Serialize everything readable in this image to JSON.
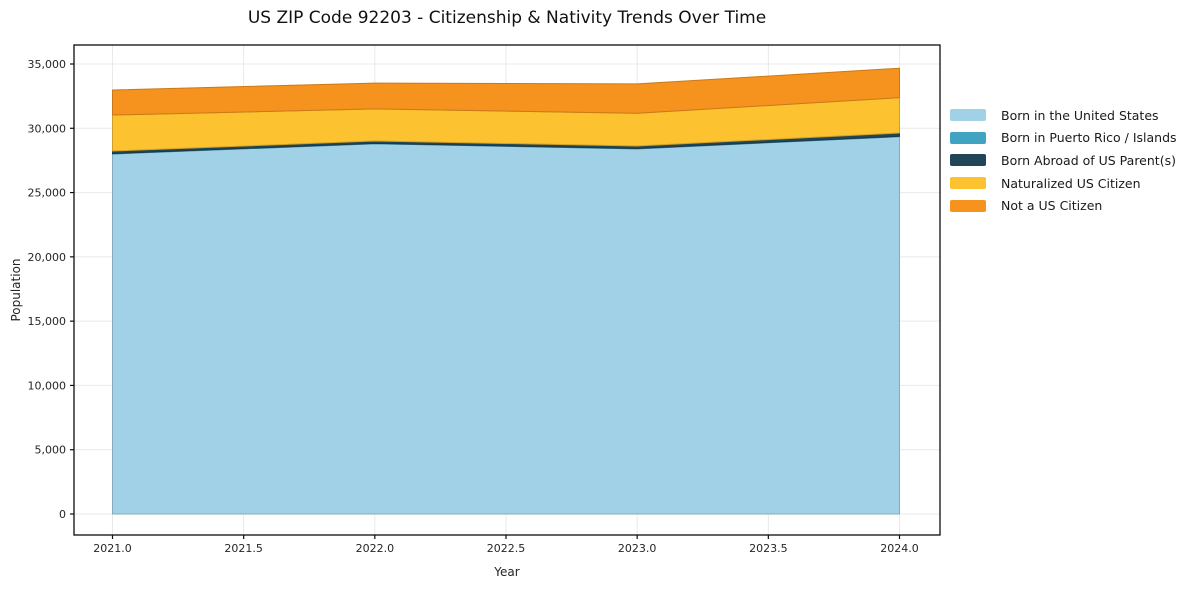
{
  "chart_data": {
    "type": "area",
    "stacked": true,
    "title": "US ZIP Code 92203 - Citizenship & Nativity Trends Over Time",
    "xlabel": "Year",
    "ylabel": "Population",
    "x": [
      2021,
      2022,
      2023,
      2024
    ],
    "series": [
      {
        "label": "Born in the United States",
        "color": "#a0d1e7",
        "values": [
          28000,
          28800,
          28400,
          29350
        ]
      },
      {
        "label": "Born in Puerto Rico / Islands",
        "color": "#41a3c2",
        "values": [
          30,
          30,
          30,
          30
        ]
      },
      {
        "label": "Born Abroad of US Parent(s)",
        "color": "#1f4557",
        "values": [
          200,
          180,
          190,
          250
        ]
      },
      {
        "label": "Naturalized US Citizen",
        "color": "#fcc22f",
        "values": [
          2800,
          2500,
          2550,
          2750
        ]
      },
      {
        "label": "Not a US Citizen",
        "color": "#f6931e",
        "values": [
          1950,
          2000,
          2280,
          2290
        ]
      }
    ],
    "stack_totals": [
      32980,
      33510,
      33450,
      34670
    ],
    "x_ticks": {
      "values": [
        2021.0,
        2021.5,
        2022.0,
        2022.5,
        2023.0,
        2023.5,
        2024.0
      ],
      "labels": [
        "2021.0",
        "2021.5",
        "2022.0",
        "2022.5",
        "2023.0",
        "2023.5",
        "2024.0"
      ]
    },
    "y_ticks": {
      "values": [
        0,
        5000,
        10000,
        15000,
        20000,
        25000,
        30000,
        35000
      ],
      "labels": [
        "0",
        "5,000",
        "10,000",
        "15,000",
        "20,000",
        "25,000",
        "30,000",
        "35,000"
      ]
    },
    "xlim": [
      2020.85,
      2024.15
    ],
    "ylim": [
      -1633,
      36479
    ],
    "grid": true,
    "legend_position": "right-outside",
    "colors": {
      "grid": "#e9e9e9",
      "spine": "#0d0d0d",
      "tick_text": "#262626"
    }
  }
}
